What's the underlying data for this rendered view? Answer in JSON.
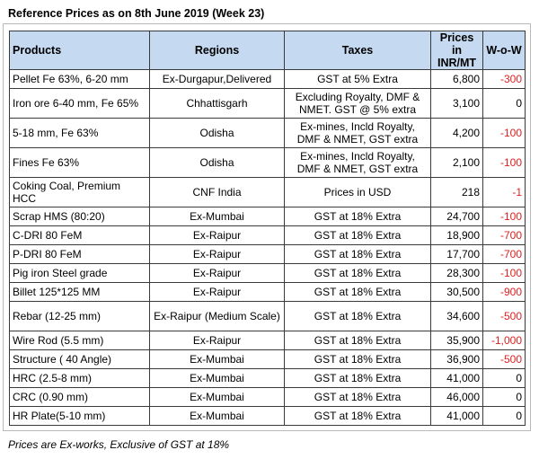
{
  "title": "Reference Prices as on 8th June 2019 (Week 23)",
  "headers": {
    "products": "Products",
    "regions": "Regions",
    "taxes": "Taxes",
    "prices": "Prices in INR/MT",
    "wow": "W-o-W"
  },
  "rows": [
    {
      "product": "Pellet Fe 63%, 6-20 mm",
      "region": "Ex-Durgapur,Delivered",
      "taxes": "GST at 5% Extra",
      "price": "6,800",
      "wow": "-300"
    },
    {
      "product": "Iron ore 6-40 mm, Fe 65%",
      "region": "Chhattisgarh",
      "taxes": "Excluding Royalty, DMF & NMET. GST @ 5% extra",
      "price": "3,100",
      "wow": "0"
    },
    {
      "product": "5-18 mm, Fe 63%",
      "region": "Odisha",
      "taxes": "Ex-mines, Incld Royalty, DMF & NMET, GST extra",
      "price": "4,200",
      "wow": "-100"
    },
    {
      "product": "Fines Fe 63%",
      "region": "Odisha",
      "taxes": "Ex-mines, Incld Royalty, DMF & NMET, GST extra",
      "price": "2,100",
      "wow": "-100"
    },
    {
      "product": "Coking Coal, Premium HCC",
      "region": "CNF India",
      "taxes": "Prices in USD",
      "price": "218",
      "wow": "-1"
    },
    {
      "product": "Scrap HMS (80:20)",
      "region": "Ex-Mumbai",
      "taxes": "GST at 18% Extra",
      "price": "24,700",
      "wow": "-100"
    },
    {
      "product": "C-DRI 80 FeM",
      "region": "Ex-Raipur",
      "taxes": "GST at 18% Extra",
      "price": "18,900",
      "wow": "-700"
    },
    {
      "product": "P-DRI 80 FeM",
      "region": "Ex-Raipur",
      "taxes": "GST at 18% Extra",
      "price": "17,700",
      "wow": "-700"
    },
    {
      "product": "Pig iron Steel grade",
      "region": "Ex-Raipur",
      "taxes": "GST at 18% Extra",
      "price": "28,300",
      "wow": "-100"
    },
    {
      "product": "Billet 125*125 MM",
      "region": "Ex-Raipur",
      "taxes": "GST at 18% Extra",
      "price": "30,500",
      "wow": "-900"
    },
    {
      "product": "Rebar (12-25 mm)",
      "region": "Ex-Raipur (Medium Scale)",
      "taxes": "GST at 18% Extra",
      "price": "34,600",
      "wow": "-500"
    },
    {
      "product": "Wire Rod (5.5 mm)",
      "region": "Ex-Raipur",
      "taxes": "GST at 18% Extra",
      "price": "35,900",
      "wow": "-1,000"
    },
    {
      "product": "Structure ( 40 Angle)",
      "region": "Ex-Mumbai",
      "taxes": "GST at 18% Extra",
      "price": "36,900",
      "wow": "-500"
    },
    {
      "product": "HRC (2.5-8 mm)",
      "region": "Ex-Mumbai",
      "taxes": "GST at 18% Extra",
      "price": "41,000",
      "wow": "0"
    },
    {
      "product": "CRC (0.90 mm)",
      "region": "Ex-Mumbai",
      "taxes": "GST at 18% Extra",
      "price": "46,000",
      "wow": "0"
    },
    {
      "product": "HR Plate(5-10 mm)",
      "region": "Ex-Mumbai",
      "taxes": "GST at 18% Extra",
      "price": "41,000",
      "wow": "0"
    }
  ],
  "footnote": "Prices are Ex-works, Exclusive of GST at 18%",
  "colors": {
    "header_bg": "#c5d9f1",
    "negative": "#e02020"
  }
}
